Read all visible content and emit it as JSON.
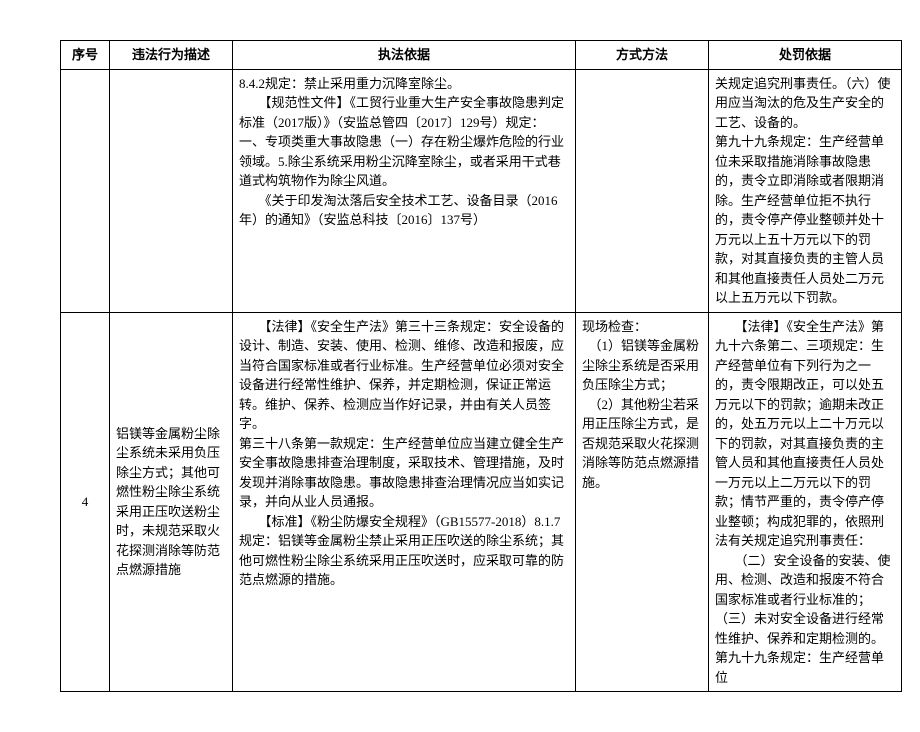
{
  "table": {
    "columns": [
      "序号",
      "违法行为描述",
      "执法依据",
      "方式方法",
      "处罚依据"
    ],
    "rows": [
      {
        "idx": "",
        "desc": "",
        "basis": "8.4.2规定：禁止采用重力沉降室除尘。\n　　【规范性文件】《工贸行业重大生产安全事故隐患判定标准（2017版）》（安监总管四〔2017〕129号）规定：一、专项类重大事故隐患（一）存在粉尘爆炸危险的行业领域。5.除尘系统采用粉尘沉降室除尘，或者采用干式巷道式构筑物作为除尘风道。\n　　《关于印发淘汰落后安全技术工艺、设备目录（2016年）的通知》（安监总科技〔2016〕137号）",
        "method": "",
        "penalty": "关规定追究刑事责任。（六）使用应当淘汰的危及生产安全的工艺、设备的。\n第九十九条规定：生产经营单位未采取措施消除事故隐患的，责令立即消除或者限期消除。生产经营单位拒不执行的，责令停产停业整顿并处十万元以上五十万元以下的罚款，对其直接负责的主管人员和其他直接责任人员处二万元以上五万元以下罚款。"
      },
      {
        "idx": "4",
        "desc": "铝镁等金属粉尘除尘系统未采用负压除尘方式；其他可燃性粉尘除尘系统采用正压吹送粉尘时，未规范采取火花探测消除等防范点燃源措施",
        "basis": "　　【法律】《安全生产法》第三十三条规定：安全设备的设计、制造、安装、使用、检测、维修、改造和报废，应当符合国家标准或者行业标准。生产经营单位必须对安全设备进行经常性维护、保养，并定期检测，保证正常运转。维护、保养、检测应当作好记录，并由有关人员签字。\n第三十八条第一款规定：生产经营单位应当建立健全生产安全事故隐患排查治理制度，采取技术、管理措施，及时发现并消除事故隐患。事故隐患排查治理情况应当如实记录，并向从业人员通报。\n　　【标准】《粉尘防爆安全规程》（GB15577-2018）8.1.7规定：铝镁等金属粉尘禁止采用正压吹送的除尘系统；其他可燃性粉尘除尘系统采用正压吹送时，应采取可靠的防范点燃源的措施。",
        "method": "现场检查：\n　（1）铝镁等金属粉尘除尘系统是否采用负压除尘方式；\n　（2）其他粉尘若采用正压除尘方式，是否规范采取火花探测消除等防范点燃源措施。",
        "penalty": "　　【法律】《安全生产法》第九十六条第二、三项规定：生产经营单位有下列行为之一的，责令限期改正，可以处五万元以下的罚款；逾期未改正的，处五万元以上二十万元以下的罚款，对其直接负责的主管人员和其他直接责任人员处一万元以上二万元以下的罚款；情节严重的，责令停产停业整顿；构成犯罪的，依照刑法有关规定追究刑事责任：\n　　（二）安全设备的安装、使用、检测、改造和报废不符合国家标准或者行业标准的；（三）未对安全设备进行经常性维护、保养和定期检测的。\n第九十九条规定：生产经营单位"
      }
    ]
  }
}
